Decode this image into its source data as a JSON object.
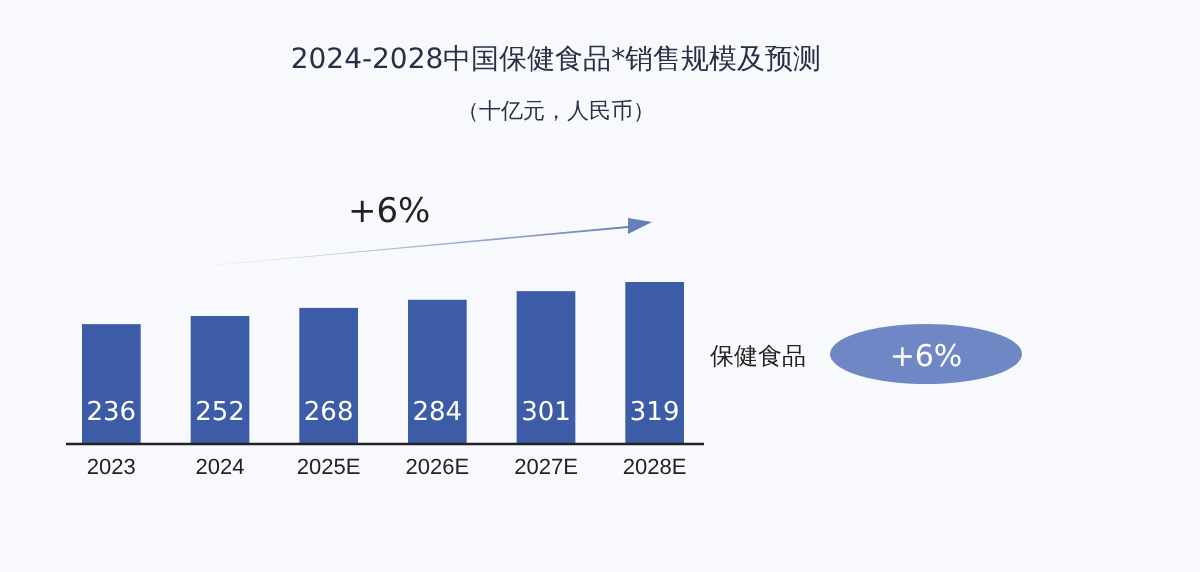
{
  "chart_data": {
    "type": "bar",
    "title": "2024-2028中国保健食品*销售规模及预测",
    "subtitle": "（十亿元，人民币）",
    "categories": [
      "2023",
      "2024",
      "2025E",
      "2026E",
      "2027E",
      "2028E"
    ],
    "series": [
      {
        "name": "保健食品",
        "color": "#3c5ca8",
        "values": [
          236,
          252,
          268,
          284,
          301,
          319
        ]
      }
    ],
    "data_labels": true,
    "legend": "right",
    "annotations": [
      "+6%",
      "+6%"
    ]
  }
}
